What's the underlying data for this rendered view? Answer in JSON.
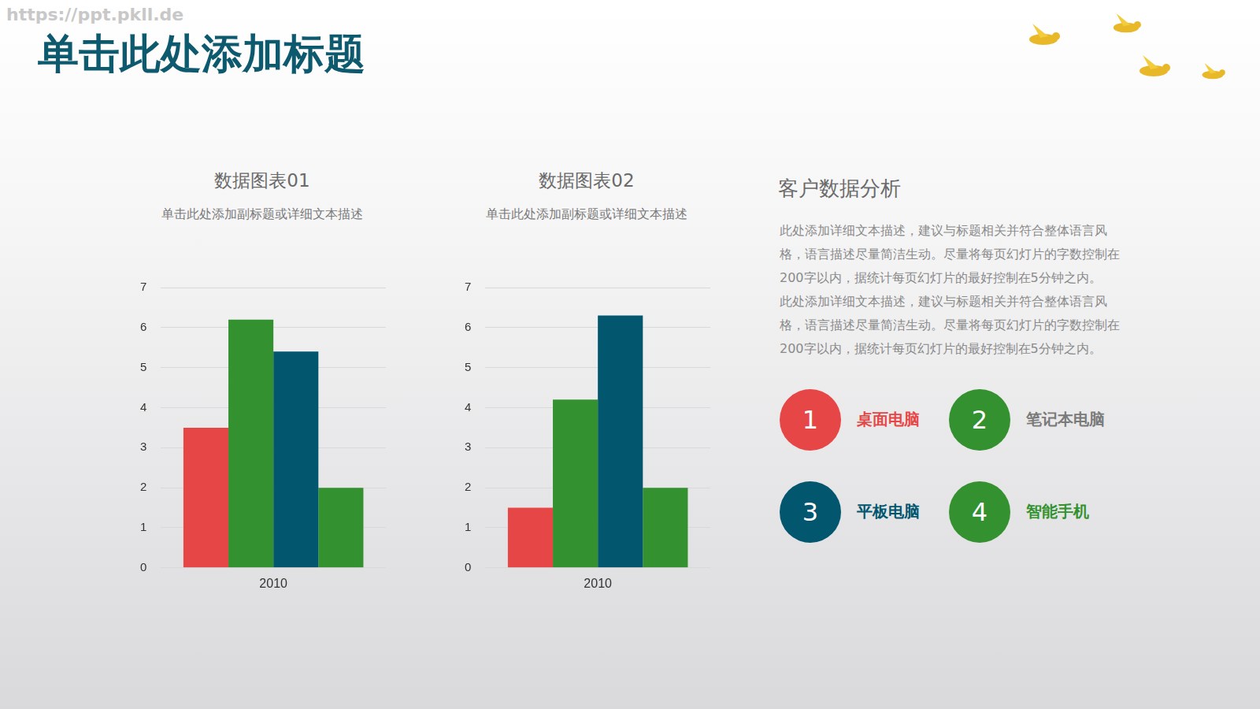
{
  "watermark": "https://ppt.pkll.de",
  "title": "单击此处添加标题",
  "chart_data": [
    {
      "type": "bar",
      "title": "数据图表01",
      "subtitle": "单击此处添加副标题或详细文本描述",
      "categories": [
        "2010"
      ],
      "series": [
        {
          "color": "#e64646",
          "values": [
            3.5
          ]
        },
        {
          "color": "#33922f",
          "values": [
            6.2
          ]
        },
        {
          "color": "#02566e",
          "values": [
            5.4
          ]
        },
        {
          "color": "#33922f",
          "values": [
            2.0
          ]
        }
      ],
      "ylim": [
        0,
        7
      ],
      "yticks": [
        0,
        1,
        2,
        3,
        4,
        5,
        6,
        7
      ],
      "grid": true
    },
    {
      "type": "bar",
      "title": "数据图表02",
      "subtitle": "单击此处添加副标题或详细文本描述",
      "categories": [
        "2010"
      ],
      "series": [
        {
          "color": "#e64646",
          "values": [
            1.5
          ]
        },
        {
          "color": "#33922f",
          "values": [
            4.2
          ]
        },
        {
          "color": "#02566e",
          "values": [
            6.3
          ]
        },
        {
          "color": "#33922f",
          "values": [
            2.0
          ]
        }
      ],
      "ylim": [
        0,
        7
      ],
      "yticks": [
        0,
        1,
        2,
        3,
        4,
        5,
        6,
        7
      ],
      "grid": true
    }
  ],
  "panel": {
    "heading": "客户数据分析",
    "paragraphs": [
      "此处添加详细文本描述，建议与标题相关并符合整体语言风格，语言描述尽量简洁生动。尽量将每页幻灯片的字数控制在200字以内，据统计每页幻灯片的最好控制在5分钟之内。",
      "此处添加详细文本描述，建议与标题相关并符合整体语言风格，语言描述尽量简洁生动。尽量将每页幻灯片的字数控制在200字以内，据统计每页幻灯片的最好控制在5分钟之内。"
    ],
    "items": [
      {
        "number": "1",
        "label": "桌面电脑",
        "color": "#e64646",
        "label_color": "#e64646"
      },
      {
        "number": "2",
        "label": "笔记本电脑",
        "color": "#33922f",
        "label_color": "#7a7a7a"
      },
      {
        "number": "3",
        "label": "平板电脑",
        "color": "#02566e",
        "label_color": "#02566e"
      },
      {
        "number": "4",
        "label": "智能手机",
        "color": "#33922f",
        "label_color": "#33922f"
      }
    ]
  }
}
